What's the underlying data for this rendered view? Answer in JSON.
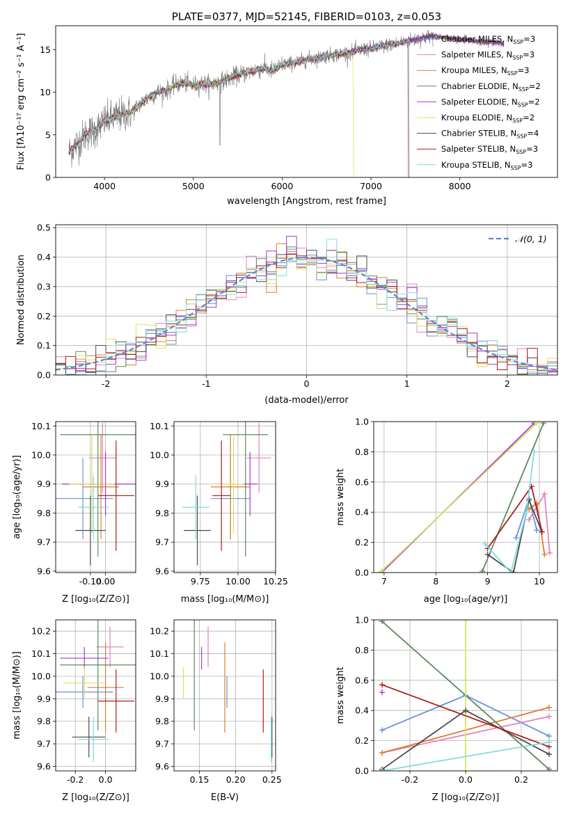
{
  "colors": {
    "chabrier_miles": "#6a8fdc",
    "salpeter_miles": "#e382bf",
    "kroupa_miles": "#e07b2c",
    "chabrier_elodie": "#5a8a5f",
    "salpeter_elodie": "#a23ad3",
    "kroupa_elodie": "#d7e35e",
    "chabrier_stelib": "#4a4a4a",
    "salpeter_stelib": "#b01b1b",
    "kroupa_stelib": "#7fdcdc",
    "data": "#808080"
  },
  "chart_data": [
    {
      "id": "spectrum",
      "type": "line",
      "title": "PLATE=0377, MJD=52145, FIBERID=0103, z=0.053",
      "xlabel": "wavelength [Angstrom, rest frame]",
      "ylabel": "Flux [fλ10⁻¹⁷ erg cm⁻² s⁻¹ A⁻¹]",
      "xlim": [
        3450,
        9100
      ],
      "ylim": [
        0,
        17.8
      ],
      "xticks": [
        4000,
        5000,
        6000,
        7000,
        8000
      ],
      "yticks": [
        0,
        5,
        10,
        15
      ],
      "grid": false,
      "legend_position": "top-right",
      "continuum": [
        [
          3600,
          3.0
        ],
        [
          3700,
          4.0
        ],
        [
          3800,
          5.2
        ],
        [
          3900,
          5.5
        ],
        [
          4000,
          6.6
        ],
        [
          4100,
          7.0
        ],
        [
          4200,
          7.4
        ],
        [
          4300,
          7.6
        ],
        [
          4400,
          8.6
        ],
        [
          4500,
          9.4
        ],
        [
          4600,
          10.0
        ],
        [
          4700,
          10.2
        ],
        [
          4800,
          10.9
        ],
        [
          4900,
          11.1
        ],
        [
          5000,
          10.8
        ],
        [
          5100,
          11.0
        ],
        [
          5200,
          10.9
        ],
        [
          5300,
          11.2
        ],
        [
          5400,
          11.6
        ],
        [
          5500,
          12.0
        ],
        [
          5600,
          12.3
        ],
        [
          5700,
          12.6
        ],
        [
          5800,
          12.8
        ],
        [
          5900,
          12.5
        ],
        [
          6000,
          13.2
        ],
        [
          6100,
          13.4
        ],
        [
          6200,
          13.6
        ],
        [
          6300,
          13.9
        ],
        [
          6400,
          14.0
        ],
        [
          6500,
          14.3
        ],
        [
          6600,
          14.4
        ],
        [
          6700,
          14.6
        ],
        [
          6800,
          14.7
        ],
        [
          6900,
          15.0
        ],
        [
          7000,
          15.1
        ],
        [
          7100,
          15.3
        ],
        [
          7200,
          15.6
        ],
        [
          7300,
          15.7
        ],
        [
          7400,
          16.0
        ],
        [
          7500,
          16.2
        ],
        [
          7600,
          16.4
        ],
        [
          7700,
          16.6
        ],
        [
          7800,
          16.4
        ],
        [
          7900,
          16.3
        ],
        [
          8000,
          16.2
        ],
        [
          8100,
          16.1
        ],
        [
          8200,
          16.0
        ],
        [
          8300,
          15.9
        ],
        [
          8400,
          15.8
        ],
        [
          8500,
          15.7
        ]
      ],
      "data_xrange": [
        3600,
        7700
      ],
      "model_xrange": [
        3600,
        8500
      ],
      "series": [
        {
          "name": "Chabrier MILES",
          "nssp": "3",
          "color_key": "chabrier_miles"
        },
        {
          "name": "Salpeter MILES",
          "nssp": "3",
          "color_key": "salpeter_miles"
        },
        {
          "name": "Kroupa MILES",
          "nssp": "3",
          "color_key": "kroupa_miles"
        },
        {
          "name": "Chabrier ELODIE",
          "nssp": "2",
          "color_key": "chabrier_elodie"
        },
        {
          "name": "Salpeter ELODIE",
          "nssp": "2",
          "color_key": "salpeter_elodie"
        },
        {
          "name": "Kroupa ELODIE",
          "nssp": "2",
          "color_key": "kroupa_elodie"
        },
        {
          "name": "Chabrier STELIB",
          "nssp": "4",
          "color_key": "chabrier_stelib"
        },
        {
          "name": "Salpeter STELIB",
          "nssp": "3",
          "color_key": "salpeter_stelib"
        },
        {
          "name": "Kroupa STELIB",
          "nssp": "3",
          "color_key": "kroupa_stelib"
        }
      ],
      "drops": [
        {
          "color_key": "kroupa_elodie",
          "x": 6800
        },
        {
          "color_key": "salpeter_stelib",
          "x": 7420
        },
        {
          "color_key": "kroupa_stelib",
          "x": 7430
        }
      ]
    },
    {
      "id": "residuals",
      "type": "line",
      "xlabel": "(data-model)/error",
      "ylabel": "Normed distribution",
      "xlim": [
        -2.5,
        2.5
      ],
      "ylim": [
        0,
        0.51
      ],
      "xticks": [
        -2,
        -1,
        0,
        1,
        2
      ],
      "yticks": [
        0.0,
        0.1,
        0.2,
        0.3,
        0.4,
        0.5
      ],
      "grid": true,
      "legend_position": "top-right",
      "gaussian_label": "𝒩(0, 1)",
      "gaussian_color": "#5b86d8",
      "bin_width": 0.1
    },
    {
      "id": "z_age",
      "type": "scatter",
      "xlabel": "Z [log₁₀(Z/Z⊙)]",
      "ylabel": "age  [log₁₀(age/yr)]",
      "xlim": [
        -0.33,
        0.2
      ],
      "ylim": [
        9.595,
        10.115
      ],
      "xticks": [
        -0.1,
        0.0
      ],
      "yticks": [
        9.6,
        9.7,
        9.8,
        9.9,
        10.0,
        10.1
      ],
      "grid": true,
      "points": [
        {
          "color_key": "chabrier_miles",
          "x": -0.15,
          "xerr": 0.2,
          "y": 9.85,
          "yerr": 0.14
        },
        {
          "color_key": "salpeter_miles",
          "x": -0.02,
          "xerr": 0.09,
          "y": 9.99,
          "yerr": 0.12
        },
        {
          "color_key": "kroupa_miles",
          "x": -0.03,
          "xerr": 0.12,
          "y": 9.89,
          "yerr": 0.18
        },
        {
          "color_key": "chabrier_elodie",
          "x": -0.05,
          "xerr": 0.25,
          "y": 10.07,
          "yerr": 0.42
        },
        {
          "color_key": "salpeter_elodie",
          "x": 0.0,
          "xerr": 0.29,
          "y": 9.9,
          "yerr": 0.11
        },
        {
          "color_key": "kroupa_elodie",
          "x": -0.09,
          "xerr": 0.15,
          "y": 9.9,
          "yerr": 0.17
        },
        {
          "color_key": "chabrier_stelib",
          "x": -0.1,
          "xerr": 0.1,
          "y": 9.74,
          "yerr": 0.12
        },
        {
          "color_key": "salpeter_stelib",
          "x": 0.07,
          "xerr": 0.12,
          "y": 9.86,
          "yerr": 0.19
        },
        {
          "color_key": "kroupa_stelib",
          "x": -0.08,
          "xerr": 0.1,
          "y": 9.82,
          "yerr": 0.11
        }
      ]
    },
    {
      "id": "mass_age",
      "type": "scatter",
      "xlabel": "mass [log₁₀(M/M⊙)]",
      "xlim": [
        9.575,
        10.25
      ],
      "ylim": [
        9.595,
        10.115
      ],
      "xticks": [
        9.75,
        10.0,
        10.25
      ],
      "yticks": [
        9.6,
        9.7,
        9.8,
        9.9,
        10.0,
        10.1
      ],
      "grid": true,
      "points": [
        {
          "color_key": "chabrier_miles",
          "x": 9.95,
          "xerr": 0.13,
          "y": 9.85,
          "yerr": 0.14
        },
        {
          "color_key": "salpeter_miles",
          "x": 10.14,
          "xerr": 0.08,
          "y": 9.99,
          "yerr": 0.12
        },
        {
          "color_key": "kroupa_miles",
          "x": 9.95,
          "xerr": 0.13,
          "y": 9.89,
          "yerr": 0.18
        },
        {
          "color_key": "chabrier_elodie",
          "x": 10.05,
          "xerr": 0.15,
          "y": 10.07,
          "yerr": 0.42
        },
        {
          "color_key": "salpeter_elodie",
          "x": 10.08,
          "xerr": 0.05,
          "y": 9.9,
          "yerr": 0.11
        },
        {
          "color_key": "kroupa_elodie",
          "x": 9.97,
          "xerr": 0.07,
          "y": 9.9,
          "yerr": 0.17
        },
        {
          "color_key": "chabrier_stelib",
          "x": 9.73,
          "xerr": 0.09,
          "y": 9.74,
          "yerr": 0.12
        },
        {
          "color_key": "salpeter_stelib",
          "x": 9.89,
          "xerr": 0.06,
          "y": 9.86,
          "yerr": 0.19
        },
        {
          "color_key": "kroupa_stelib",
          "x": 9.72,
          "xerr": 0.09,
          "y": 9.82,
          "yerr": 0.11
        }
      ]
    },
    {
      "id": "age_weight",
      "type": "line",
      "xlabel": "age  [log₁₀(age/yr)]",
      "ylabel": "mass weight",
      "xlim": [
        6.8,
        10.35
      ],
      "ylim": [
        0,
        1.0
      ],
      "xticks": [
        7,
        8,
        9,
        10
      ],
      "yticks": [
        0.0,
        0.2,
        0.4,
        0.6,
        0.8,
        1.0
      ],
      "grid": true,
      "series": [
        {
          "color_key": "chabrier_miles",
          "x": [
            9.55,
            9.8,
            9.95
          ],
          "y": [
            0.23,
            0.49,
            0.28
          ]
        },
        {
          "color_key": "salpeter_miles",
          "x": [
            9.8,
            10.1,
            10.2
          ],
          "y": [
            0.35,
            0.52,
            0.13
          ]
        },
        {
          "color_key": "kroupa_miles",
          "x": [
            9.8,
            9.95,
            10.1
          ],
          "y": [
            0.42,
            0.46,
            0.12
          ]
        },
        {
          "color_key": "chabrier_elodie",
          "x": [
            8.9,
            10.08
          ],
          "y": [
            0.01,
            0.99
          ]
        },
        {
          "color_key": "salpeter_elodie",
          "x": [
            6.95,
            9.9
          ],
          "y": [
            0.0,
            0.99
          ]
        },
        {
          "color_key": "kroupa_elodie",
          "x": [
            6.95,
            9.95
          ],
          "y": [
            0.01,
            0.99
          ]
        },
        {
          "color_key": "chabrier_stelib",
          "x": [
            9.0,
            9.5,
            9.8,
            10.05
          ],
          "y": [
            0.12,
            0.0,
            0.48,
            0.27
          ]
        },
        {
          "color_key": "salpeter_stelib",
          "x": [
            9.0,
            9.85,
            10.05
          ],
          "y": [
            0.16,
            0.57,
            0.27
          ]
        },
        {
          "color_key": "kroupa_stelib",
          "x": [
            8.95,
            9.45,
            9.75,
            9.9
          ],
          "y": [
            0.19,
            0.0,
            0.4,
            0.8
          ]
        }
      ]
    },
    {
      "id": "z_mass",
      "type": "scatter",
      "xlabel": "Z [log₁₀(Z/Z⊙)]",
      "ylabel": "mass [log₁₀(M/M⊙)]",
      "xlim": [
        -0.33,
        0.2
      ],
      "ylim": [
        9.58,
        10.25
      ],
      "xticks": [
        -0.2,
        0.0
      ],
      "yticks": [
        9.6,
        9.7,
        9.8,
        9.9,
        10.0,
        10.1,
        10.2
      ],
      "grid": true,
      "points": [
        {
          "color_key": "chabrier_miles",
          "x": -0.15,
          "xerr": 0.2,
          "y": 9.93,
          "yerr": 0.07
        },
        {
          "color_key": "salpeter_miles",
          "x": 0.03,
          "xerr": 0.09,
          "y": 10.13,
          "yerr": 0.09
        },
        {
          "color_key": "kroupa_miles",
          "x": 0.0,
          "xerr": 0.12,
          "y": 9.95,
          "yerr": 0.2
        },
        {
          "color_key": "chabrier_elodie",
          "x": -0.05,
          "xerr": 0.25,
          "y": 10.05,
          "yerr": 0.29
        },
        {
          "color_key": "salpeter_elodie",
          "x": -0.14,
          "xerr": 0.16,
          "y": 10.08,
          "yerr": 0.05
        },
        {
          "color_key": "kroupa_elodie",
          "x": -0.14,
          "xerr": 0.14,
          "y": 9.97,
          "yerr": 0.07
        },
        {
          "color_key": "chabrier_stelib",
          "x": -0.11,
          "xerr": 0.11,
          "y": 9.73,
          "yerr": 0.09
        },
        {
          "color_key": "salpeter_stelib",
          "x": 0.07,
          "xerr": 0.12,
          "y": 9.89,
          "yerr": 0.14
        },
        {
          "color_key": "kroupa_stelib",
          "x": -0.08,
          "xerr": 0.1,
          "y": 9.72,
          "yerr": 0.1
        }
      ]
    },
    {
      "id": "ebv_mass",
      "type": "scatter",
      "xlabel": "E(B-V)",
      "xlim": [
        0.115,
        0.255
      ],
      "ylim": [
        9.58,
        10.25
      ],
      "xticks": [
        0.15,
        0.2,
        0.25
      ],
      "yticks": [
        9.6,
        9.7,
        9.8,
        9.9,
        10.0,
        10.1,
        10.2
      ],
      "grid": true,
      "points": [
        {
          "color_key": "chabrier_miles",
          "x": 0.188,
          "y": 9.93,
          "yerr": 0.07
        },
        {
          "color_key": "salpeter_miles",
          "x": 0.162,
          "y": 10.13,
          "yerr": 0.09
        },
        {
          "color_key": "kroupa_miles",
          "x": 0.185,
          "y": 9.95,
          "yerr": 0.2
        },
        {
          "color_key": "chabrier_elodie",
          "x": 0.143,
          "y": 10.05,
          "yerr": 0.29
        },
        {
          "color_key": "salpeter_elodie",
          "x": 0.153,
          "y": 10.08,
          "yerr": 0.05
        },
        {
          "color_key": "kroupa_elodie",
          "x": 0.128,
          "y": 9.97,
          "yerr": 0.07
        },
        {
          "color_key": "chabrier_stelib",
          "x": 0.25,
          "y": 9.73,
          "yerr": 0.09
        },
        {
          "color_key": "salpeter_stelib",
          "x": 0.238,
          "y": 9.89,
          "yerr": 0.14
        },
        {
          "color_key": "kroupa_stelib",
          "x": 0.249,
          "y": 9.72,
          "yerr": 0.1
        }
      ]
    },
    {
      "id": "z_weight",
      "type": "line",
      "xlabel": "Z [log₁₀(Z/Z⊙)]",
      "ylabel": "mass weight",
      "xlim": [
        -0.33,
        0.33
      ],
      "ylim": [
        0,
        1.0
      ],
      "xticks": [
        -0.2,
        0.0,
        0.2
      ],
      "yticks": [
        0.0,
        0.2,
        0.4,
        0.6,
        0.8,
        1.0
      ],
      "grid": true,
      "series": [
        {
          "color_key": "chabrier_miles",
          "x": [
            -0.3,
            0.0,
            0.3
          ],
          "y": [
            0.27,
            0.5,
            0.23
          ]
        },
        {
          "color_key": "salpeter_miles",
          "x": [
            -0.3,
            0.3
          ],
          "y": [
            0.12,
            0.36
          ]
        },
        {
          "color_key": "kroupa_miles",
          "x": [
            -0.3,
            0.3
          ],
          "y": [
            0.12,
            0.42
          ]
        },
        {
          "color_key": "chabrier_elodie",
          "x": [
            -0.3,
            0.3
          ],
          "y": [
            0.99,
            0.01
          ]
        },
        {
          "color_key": "salpeter_elodie",
          "x": [
            -0.3
          ],
          "y": [
            0.52
          ]
        },
        {
          "color_key": "kroupa_elodie",
          "x": [
            0.0,
            0.0
          ],
          "y": [
            0.0,
            1.0
          ]
        },
        {
          "color_key": "chabrier_stelib",
          "x": [
            -0.3,
            0.0,
            0.3
          ],
          "y": [
            0.01,
            0.4,
            0.11
          ]
        },
        {
          "color_key": "salpeter_stelib",
          "x": [
            -0.3,
            0.3
          ],
          "y": [
            0.57,
            0.16
          ]
        },
        {
          "color_key": "kroupa_stelib",
          "x": [
            -0.3,
            0.3
          ],
          "y": [
            0.0,
            0.19
          ]
        }
      ]
    }
  ]
}
